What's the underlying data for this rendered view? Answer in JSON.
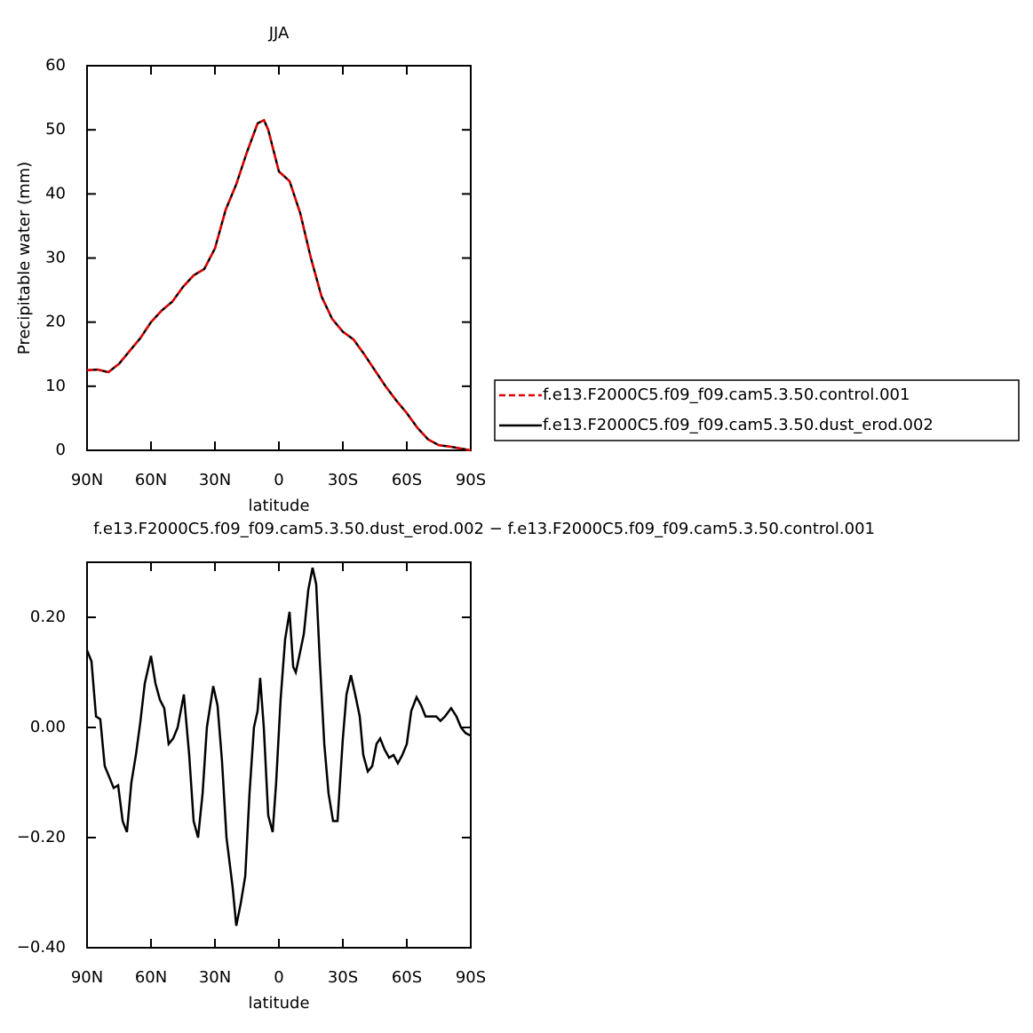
{
  "chart_data": [
    {
      "type": "line",
      "title": "JJA",
      "xlabel": "latitude",
      "ylabel": "Precipitable water (mm)",
      "x": [
        90,
        85,
        80,
        75,
        70,
        65,
        60,
        55,
        50,
        45,
        40,
        35,
        30,
        25,
        20,
        15,
        10,
        7,
        5,
        0,
        -5,
        -10,
        -15,
        -20,
        -25,
        -30,
        -35,
        -40,
        -45,
        -50,
        -55,
        -60,
        -65,
        -70,
        -75,
        -80,
        -85,
        -90
      ],
      "series": [
        {
          "name": "f.e13.F2000C5.f09_f09.cam5.3.50.control.001",
          "color": "#e00000",
          "dash": true,
          "values": [
            12.5,
            12.6,
            12.2,
            13.5,
            15.5,
            17.5,
            20,
            21.8,
            23.2,
            25.5,
            27.3,
            28.3,
            31.5,
            37.5,
            41.5,
            46.5,
            51,
            51.5,
            50,
            43.5,
            42,
            37,
            30,
            24,
            20.5,
            18.5,
            17.3,
            15,
            12.5,
            10,
            7.8,
            5.8,
            3.5,
            1.7,
            0.8,
            0.6,
            0.3,
            0
          ]
        },
        {
          "name": "f.e13.F2000C5.f09_f09.cam5.3.50.dust_erod.002",
          "color": "#000000",
          "dash": false,
          "values": [
            12.5,
            12.6,
            12.2,
            13.5,
            15.5,
            17.5,
            20,
            21.8,
            23.2,
            25.5,
            27.3,
            28.3,
            31.5,
            37.5,
            41.5,
            46.5,
            51,
            51.5,
            50,
            43.5,
            42,
            37,
            30,
            24,
            20.5,
            18.5,
            17.3,
            15,
            12.5,
            10,
            7.8,
            5.8,
            3.5,
            1.7,
            0.8,
            0.6,
            0.3,
            0
          ]
        }
      ],
      "xlim": [
        90,
        -90
      ],
      "xticks": [
        {
          "value": 90,
          "label": "90N"
        },
        {
          "value": 60,
          "label": "60N"
        },
        {
          "value": 30,
          "label": "30N"
        },
        0,
        {
          "value": -30,
          "label": "30S"
        },
        {
          "value": -60,
          "label": "60S"
        },
        {
          "value": -90,
          "label": "90S"
        }
      ],
      "ylim": [
        0,
        60
      ],
      "yticks": [
        0,
        10,
        20,
        30,
        40,
        50,
        60
      ],
      "legend": "right"
    },
    {
      "type": "line",
      "title": "f.e13.F2000C5.f09_f09.cam5.3.50.dust_erod.002 − f.e13.F2000C5.f09_f09.cam5.3.50.control.001",
      "xlabel": "latitude",
      "x": [
        90,
        87.9,
        85.8,
        83.8,
        81.7,
        79.6,
        77.5,
        75.4,
        73.3,
        71.3,
        69.2,
        67.1,
        65,
        62.9,
        60,
        57.9,
        55.8,
        53.8,
        51.7,
        49.6,
        47.5,
        44.6,
        42.1,
        40,
        37.9,
        35.8,
        33.8,
        30.8,
        28.8,
        26.7,
        24.6,
        21.7,
        20,
        17.9,
        15.8,
        13.8,
        11.7,
        10,
        8.8,
        7.1,
        5,
        2.9,
        1.3,
        -0.8,
        -2.9,
        -5,
        -6.7,
        -7.9,
        -9.6,
        -11.7,
        -13.8,
        -15.8,
        -17.5,
        -19.2,
        -21.3,
        -23.3,
        -25.4,
        -27.5,
        -30,
        -31.7,
        -33.8,
        -35.8,
        -37.9,
        -39.6,
        -41.7,
        -43.8,
        -45.8,
        -47.5,
        -49.6,
        -51.7,
        -53.8,
        -55.8,
        -57.9,
        -60,
        -62.1,
        -64.6,
        -66.7,
        -68.8,
        -71.3,
        -73.8,
        -75.8,
        -77.9,
        -80.8,
        -83.3,
        -85.4,
        -87.5,
        -90
      ],
      "values": [
        0.14,
        0.12,
        0.02,
        0.015,
        -0.07,
        -0.09,
        -0.11,
        -0.105,
        -0.17,
        -0.19,
        -0.1,
        -0.05,
        0.01,
        0.08,
        0.13,
        0.08,
        0.05,
        0.035,
        -0.03,
        -0.02,
        0,
        0.06,
        -0.05,
        -0.17,
        -0.2,
        -0.12,
        0,
        0.075,
        0.04,
        -0.06,
        -0.2,
        -0.29,
        -0.36,
        -0.32,
        -0.27,
        -0.12,
        0,
        0.03,
        0.09,
        0,
        -0.16,
        -0.19,
        -0.1,
        0.05,
        0.16,
        0.21,
        0.11,
        0.1,
        0.13,
        0.17,
        0.25,
        0.29,
        0.26,
        0.12,
        -0.03,
        -0.12,
        -0.17,
        -0.17,
        -0.02,
        0.06,
        0.095,
        0.06,
        0.02,
        -0.05,
        -0.08,
        -0.07,
        -0.03,
        -0.02,
        -0.04,
        -0.055,
        -0.05,
        -0.065,
        -0.05,
        -0.03,
        0.03,
        0.055,
        0.04,
        0.02,
        0.02,
        0.02,
        0.012,
        0.02,
        0.035,
        0.02,
        0,
        -0.01,
        -0.015
      ],
      "color": "#000000",
      "xlim": [
        90,
        -90
      ],
      "xticks": [
        {
          "value": 90,
          "label": "90N"
        },
        {
          "value": 60,
          "label": "60N"
        },
        {
          "value": 30,
          "label": "30N"
        },
        0,
        {
          "value": -30,
          "label": "30S"
        },
        {
          "value": -60,
          "label": "60S"
        },
        {
          "value": -90,
          "label": "90S"
        }
      ],
      "ylim": [
        -0.4,
        0.3
      ],
      "yticks": [
        {
          "value": -0.4,
          "label": "−0.40"
        },
        {
          "value": -0.2,
          "label": "−0.20"
        },
        {
          "value": 0,
          "label": "0.00"
        },
        {
          "value": 0.2,
          "label": "0.20"
        }
      ]
    }
  ]
}
